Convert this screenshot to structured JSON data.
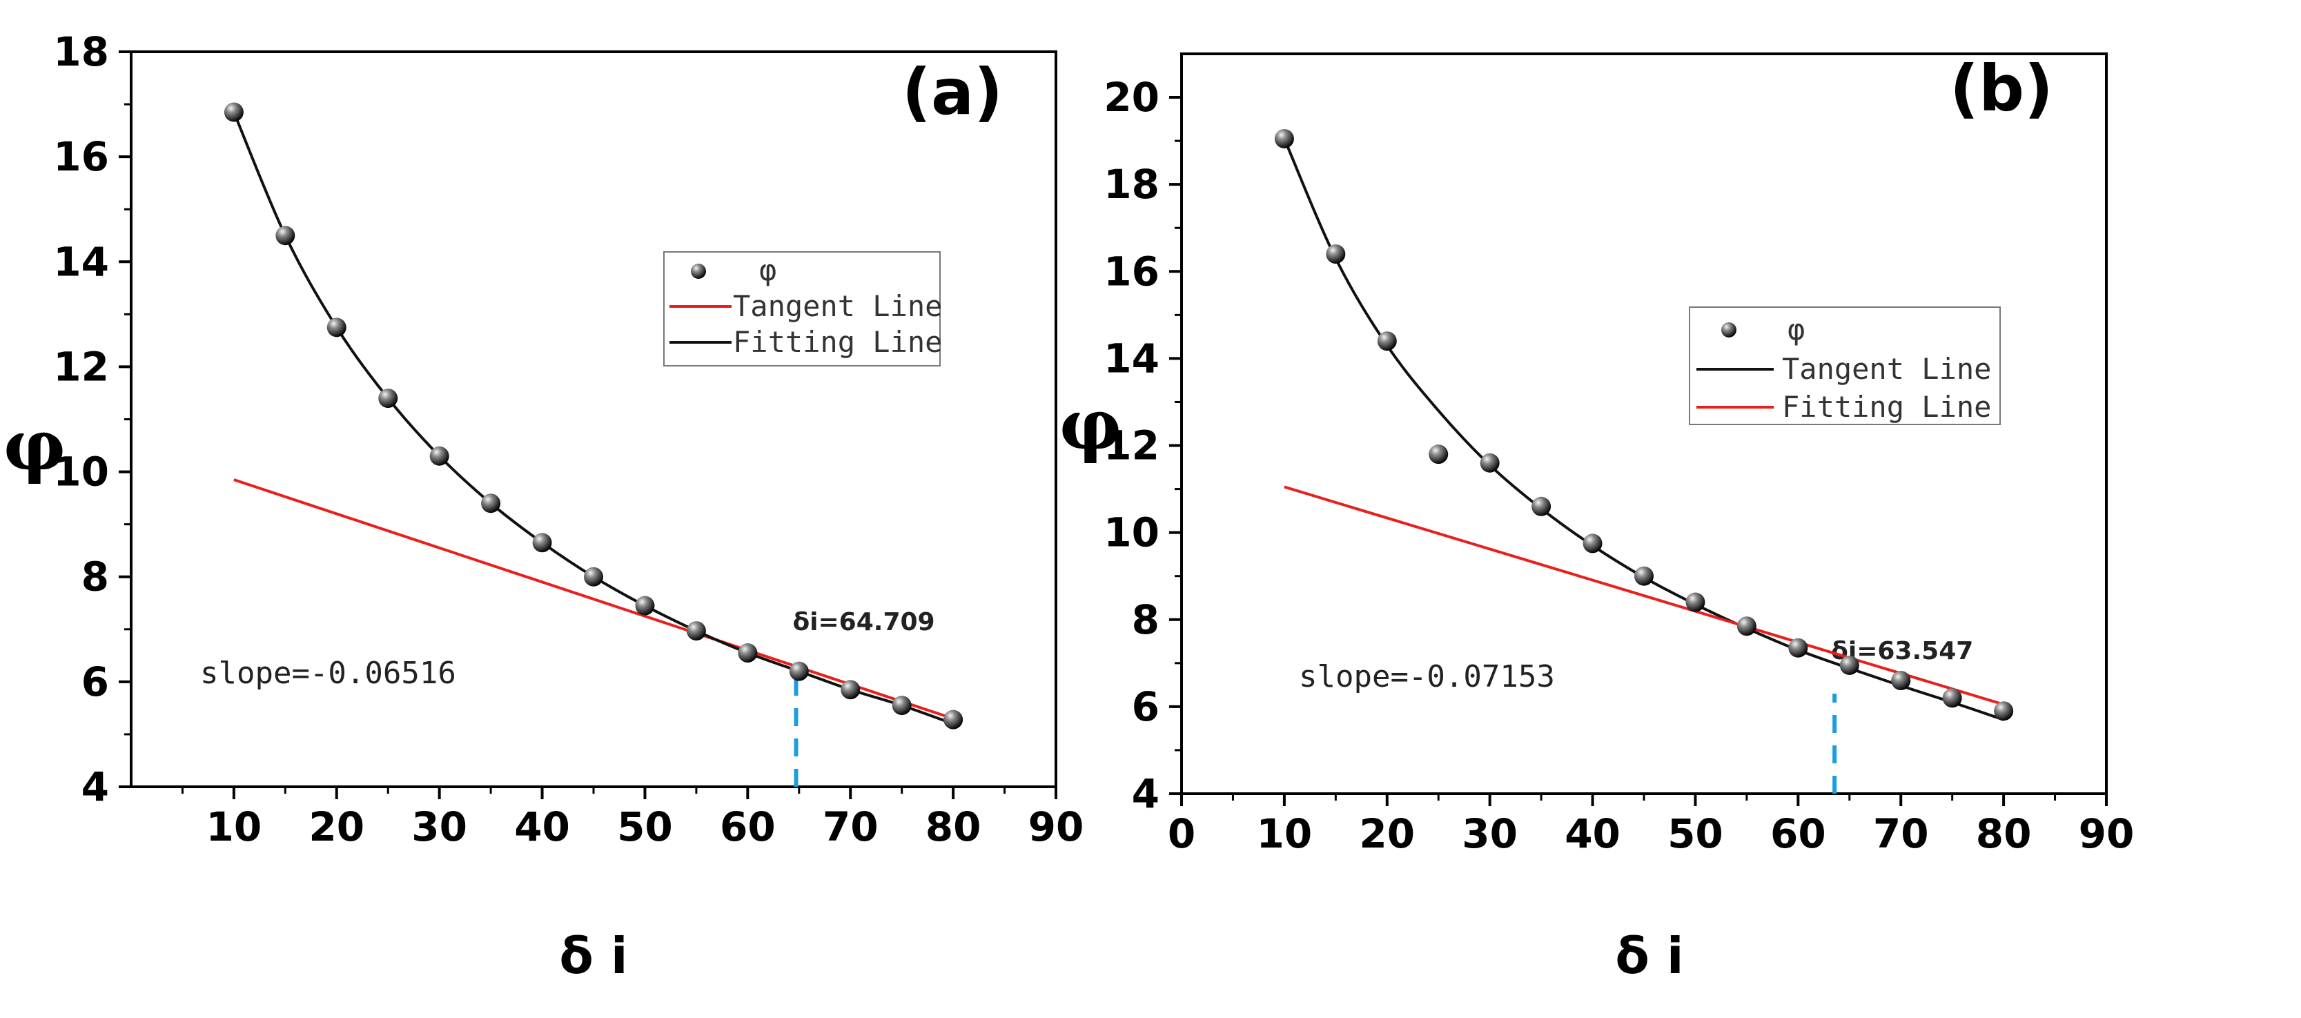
{
  "chart_data": [
    {
      "type": "scatter",
      "panel_label": "(a)",
      "xlabel": "δ i",
      "ylabel": "φ",
      "xlim": [
        0,
        90
      ],
      "ylim": [
        4,
        18
      ],
      "xticks": [
        10,
        20,
        30,
        40,
        50,
        60,
        70,
        80,
        90
      ],
      "yticks": [
        4,
        6,
        8,
        10,
        12,
        14,
        16,
        18
      ],
      "series": [
        {
          "name": "φ",
          "kind": "points",
          "x": [
            10,
            15,
            20,
            25,
            30,
            35,
            40,
            45,
            50,
            55,
            60,
            65,
            70,
            75,
            80
          ],
          "y": [
            16.85,
            14.5,
            12.75,
            11.4,
            10.3,
            9.4,
            8.65,
            8.0,
            7.45,
            6.97,
            6.55,
            6.2,
            5.85,
            5.55,
            5.28
          ]
        },
        {
          "name": "Tangent Line",
          "kind": "line",
          "color": "#e8201c",
          "x": [
            10,
            80
          ],
          "y": [
            9.85,
            5.3
          ]
        },
        {
          "name": "Fitting Line",
          "kind": "curve",
          "color": "#111111",
          "x": [
            10,
            15,
            20,
            25,
            30,
            35,
            40,
            45,
            50,
            55,
            60,
            65,
            70,
            75,
            80
          ],
          "y": [
            16.85,
            14.5,
            12.75,
            11.4,
            10.3,
            9.4,
            8.65,
            8.0,
            7.45,
            6.97,
            6.55,
            6.2,
            5.85,
            5.55,
            5.2
          ]
        }
      ],
      "legend": {
        "position": "upper-right",
        "entries": [
          "φ",
          "Tangent Line",
          "Fitting Line"
        ]
      },
      "marker_value": 64.709,
      "marker_label": "δi=64.709",
      "annotation": "slope=-0.06516"
    },
    {
      "type": "scatter",
      "panel_label": "(b)",
      "xlabel": "δ i",
      "ylabel": "φ",
      "xlim": [
        0,
        90
      ],
      "ylim": [
        4,
        21
      ],
      "xticks": [
        0,
        10,
        20,
        30,
        40,
        50,
        60,
        70,
        80,
        90
      ],
      "yticks": [
        4,
        6,
        8,
        10,
        12,
        14,
        16,
        18,
        20
      ],
      "series": [
        {
          "name": "φ",
          "kind": "points",
          "x": [
            10,
            15,
            20,
            25,
            30,
            35,
            40,
            45,
            50,
            55,
            60,
            65,
            70,
            75,
            80
          ],
          "y": [
            19.05,
            16.4,
            14.4,
            11.8,
            11.6,
            10.6,
            9.75,
            9.0,
            8.4,
            7.85,
            7.35,
            6.95,
            6.6,
            6.2,
            5.9
          ]
        },
        {
          "name": "Tangent Line",
          "kind": "curve",
          "color": "#111111",
          "x": [
            10,
            15,
            20,
            25,
            30,
            35,
            40,
            45,
            50,
            55,
            60,
            65,
            70,
            75,
            80
          ],
          "y": [
            19.05,
            16.3,
            14.3,
            12.8,
            11.55,
            10.55,
            9.7,
            8.97,
            8.35,
            7.8,
            7.3,
            6.88,
            6.48,
            6.1,
            5.7
          ]
        },
        {
          "name": "Fitting Line",
          "kind": "line",
          "color": "#e8201c",
          "x": [
            10,
            80
          ],
          "y": [
            11.05,
            6.05
          ]
        }
      ],
      "legend": {
        "position": "upper-right",
        "entries": [
          "φ",
          "Tangent Line",
          "Fitting Line"
        ]
      },
      "marker_value": 63.547,
      "marker_label": "δi=63.547",
      "annotation": "slope=-0.07153"
    }
  ]
}
